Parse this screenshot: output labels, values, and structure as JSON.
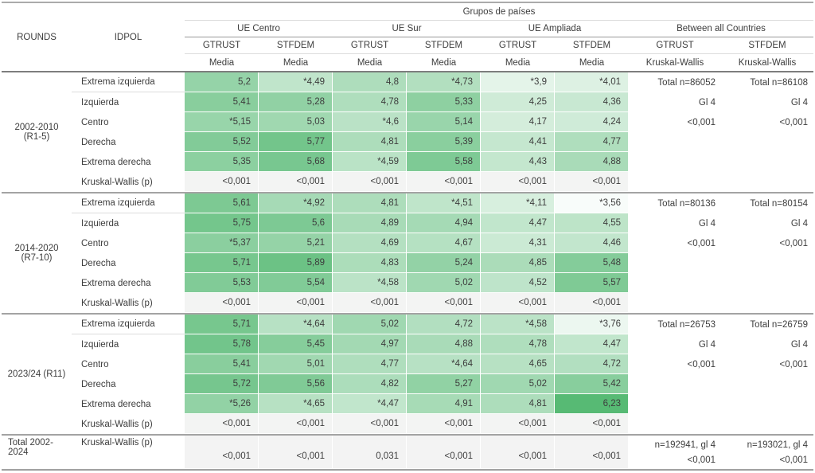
{
  "chart_data": {
    "type": "table",
    "title": "Grupos de países",
    "col_headers": {
      "rounds": "ROUNDS",
      "idpol": "IDPOL",
      "groups": [
        {
          "label": "UE Centro",
          "sub": [
            {
              "var": "GTRUST",
              "stat": "Media"
            },
            {
              "var": "STFDEM",
              "stat": "Media"
            }
          ]
        },
        {
          "label": "UE Sur",
          "sub": [
            {
              "var": "GTRUST",
              "stat": "Media"
            },
            {
              "var": "STFDEM",
              "stat": "Media"
            }
          ]
        },
        {
          "label": "UE Ampliada",
          "sub": [
            {
              "var": "GTRUST",
              "stat": "Media"
            },
            {
              "var": "STFDEM",
              "stat": "Media"
            }
          ]
        },
        {
          "label": "Between all Countries",
          "sub": [
            {
              "var": "GTRUST",
              "stat": "Kruskal-Wallis"
            },
            {
              "var": "STFDEM",
              "stat": "Kruskal-Wallis"
            }
          ]
        }
      ]
    },
    "blocks": [
      {
        "round": "2002-2010 (R1-5)",
        "rows": [
          {
            "label": "Extrema izquierda",
            "values": [
              "5,2",
              "*4,49",
              "4,8",
              "*4,73",
              "*3,9",
              "*4,01"
            ],
            "stats": [
              "Total n=86052",
              "Total n=86108"
            ],
            "kw": false
          },
          {
            "label": "Izquierda",
            "values": [
              "5,41",
              "5,28",
              "4,78",
              "5,33",
              "4,25",
              "4,36"
            ],
            "stats": [
              "Gl 4",
              "Gl 4"
            ],
            "kw": false
          },
          {
            "label": "Centro",
            "values": [
              "*5,15",
              "5,03",
              "*4,6",
              "5,14",
              "4,17",
              "4,24"
            ],
            "stats": [
              "<0,001",
              "<0,001"
            ],
            "kw": false
          },
          {
            "label": "Derecha",
            "values": [
              "5,52",
              "5,77",
              "4,81",
              "5,39",
              "4,41",
              "4,77"
            ],
            "stats": [
              "",
              ""
            ],
            "kw": false
          },
          {
            "label": "Extrema derecha",
            "values": [
              "5,35",
              "5,68",
              "*4,59",
              "5,58",
              "4,43",
              "4,88"
            ],
            "stats": [
              "",
              ""
            ],
            "kw": false
          },
          {
            "label": "Kruskal-Wallis (p)",
            "values": [
              "<0,001",
              "<0,001",
              "<0,001",
              "<0,001",
              "<0,001",
              "<0,001"
            ],
            "stats": [
              "",
              ""
            ],
            "kw": true
          }
        ]
      },
      {
        "round": "2014-2020 (R7-10)",
        "rows": [
          {
            "label": "Extrema izquierda",
            "values": [
              "5,61",
              "*4,92",
              "4,81",
              "*4,51",
              "*4,11",
              "*3,56"
            ],
            "stats": [
              "Total n=80136",
              "Total n=80154"
            ],
            "kw": false
          },
          {
            "label": "Izquierda",
            "values": [
              "5,75",
              "5,6",
              "4,89",
              "4,94",
              "4,47",
              "4,55"
            ],
            "stats": [
              "Gl 4",
              "Gl 4"
            ],
            "kw": false
          },
          {
            "label": "Centro",
            "values": [
              "*5,37",
              "5,21",
              "4,69",
              "4,67",
              "4,31",
              "4,46"
            ],
            "stats": [
              "<0,001",
              "<0,001"
            ],
            "kw": false
          },
          {
            "label": "Derecha",
            "values": [
              "5,71",
              "5,89",
              "4,83",
              "5,24",
              "4,85",
              "5,48"
            ],
            "stats": [
              "",
              ""
            ],
            "kw": false
          },
          {
            "label": "Extrema derecha",
            "values": [
              "5,53",
              "5,54",
              "*4,58",
              "5,02",
              "4,52",
              "5,57"
            ],
            "stats": [
              "",
              ""
            ],
            "kw": false
          },
          {
            "label": "Kruskal-Wallis (p)",
            "values": [
              "<0,001",
              "<0,001",
              "<0,001",
              "<0,001",
              "<0,001",
              "<0,001"
            ],
            "stats": [
              "",
              ""
            ],
            "kw": true
          }
        ]
      },
      {
        "round": "2023/24 (R11)",
        "rows": [
          {
            "label": "Extrema izquierda",
            "values": [
              "5,71",
              "*4,64",
              "5,02",
              "4,72",
              "*4,58",
              "*3,76"
            ],
            "stats": [
              "Total n=26753",
              "Total n=26759"
            ],
            "kw": false
          },
          {
            "label": "Izquierda",
            "values": [
              "5,78",
              "5,45",
              "4,97",
              "4,88",
              "4,78",
              "4,47"
            ],
            "stats": [
              "Gl 4",
              "Gl 4"
            ],
            "kw": false
          },
          {
            "label": "Centro",
            "values": [
              "5,41",
              "5,01",
              "4,77",
              "*4,64",
              "4,65",
              "4,72"
            ],
            "stats": [
              "<0,001",
              "<0,001"
            ],
            "kw": false
          },
          {
            "label": "Derecha",
            "values": [
              "5,72",
              "5,56",
              "4,82",
              "5,27",
              "5,02",
              "5,42"
            ],
            "stats": [
              "",
              ""
            ],
            "kw": false
          },
          {
            "label": "Extrema derecha",
            "values": [
              "*5,26",
              "*4,65",
              "*4,47",
              "4,91",
              "4,81",
              "6,23"
            ],
            "stats": [
              "",
              ""
            ],
            "kw": false
          },
          {
            "label": "Kruskal-Wallis (p)",
            "values": [
              "<0,001",
              "<0,001",
              "<0,001",
              "<0,001",
              "<0,001",
              "<0,001"
            ],
            "stats": [
              "",
              ""
            ],
            "kw": true
          }
        ]
      }
    ],
    "total": {
      "round": "Total 2002-2024",
      "label": "Kruskal-Wallis (p)",
      "values": [
        "<0,001",
        "<0,001",
        "0,031",
        "<0,001",
        "<0,001",
        "<0,001"
      ],
      "stats": [
        [
          "n=192941, gl 4",
          "<0,001"
        ],
        [
          "n=193021, gl 4",
          "<0,001"
        ]
      ]
    },
    "heatmap": {
      "min_value": 3.45,
      "max_value": 6.25,
      "low_color": "#FFFFFF",
      "high_color": "#56B973",
      "kw_row_bg": "#F3F4F3"
    }
  }
}
